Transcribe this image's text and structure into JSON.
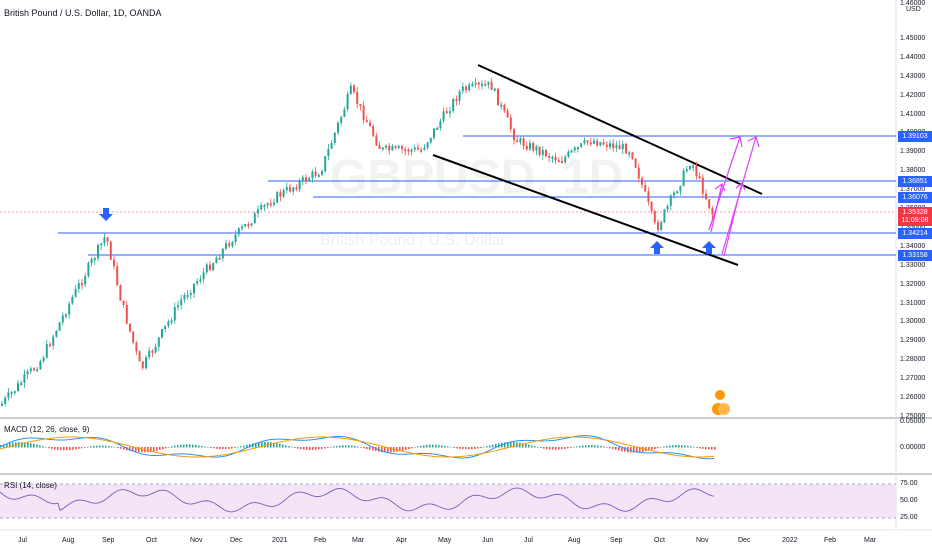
{
  "header": {
    "title": "British Pound / U.S. Dollar, 1D, OANDA"
  },
  "watermark": {
    "symbol": "GBPUSD, 1D",
    "name": "British Pound / U.S. Dollar"
  },
  "price_axis": {
    "currency": "USD",
    "ticks": [
      "1.46000",
      "1.45000",
      "1.44000",
      "1.43000",
      "1.42000",
      "1.41000",
      "1.40000",
      "1.39000",
      "1.38000",
      "1.37000",
      "1.36000",
      "1.35000",
      "1.34000",
      "1.33000",
      "1.32000",
      "1.31000",
      "1.30000",
      "1.29000",
      "1.28000",
      "1.27000",
      "1.26000",
      "1.25000"
    ]
  },
  "price_labels": [
    {
      "value": "1.39103",
      "color": "#2962ff"
    },
    {
      "value": "1.36851",
      "color": "#2962ff"
    },
    {
      "value": "1.36076",
      "color": "#2962ff"
    },
    {
      "value": "1.35328",
      "color": "#f23645"
    },
    {
      "value": "11:09:08",
      "color": "#f23645"
    },
    {
      "value": "1.34214",
      "color": "#2962ff"
    },
    {
      "value": "1.33158",
      "color": "#2962ff"
    }
  ],
  "time_axis": [
    "Jul",
    "Aug",
    "Sep",
    "Oct",
    "Nov",
    "Dec",
    "2021",
    "Feb",
    "Mar",
    "Apr",
    "May",
    "Jun",
    "Jul",
    "Aug",
    "Sep",
    "Oct",
    "Nov",
    "Dec",
    "2022",
    "Feb",
    "Mar"
  ],
  "macd": {
    "label": "MACD (12, 26, close, 9)",
    "ticks": [
      "0.05000",
      "0.00000"
    ]
  },
  "rsi": {
    "label": "RSI (14, close)",
    "ticks": [
      "75.00",
      "50.00",
      "25.00"
    ]
  },
  "colors": {
    "up": "#26a69a",
    "down": "#ef5350",
    "line": "#2962ff",
    "channel": "#000000",
    "arrow": "#e040fb",
    "rsi_bg": "#f3e5f5"
  }
}
